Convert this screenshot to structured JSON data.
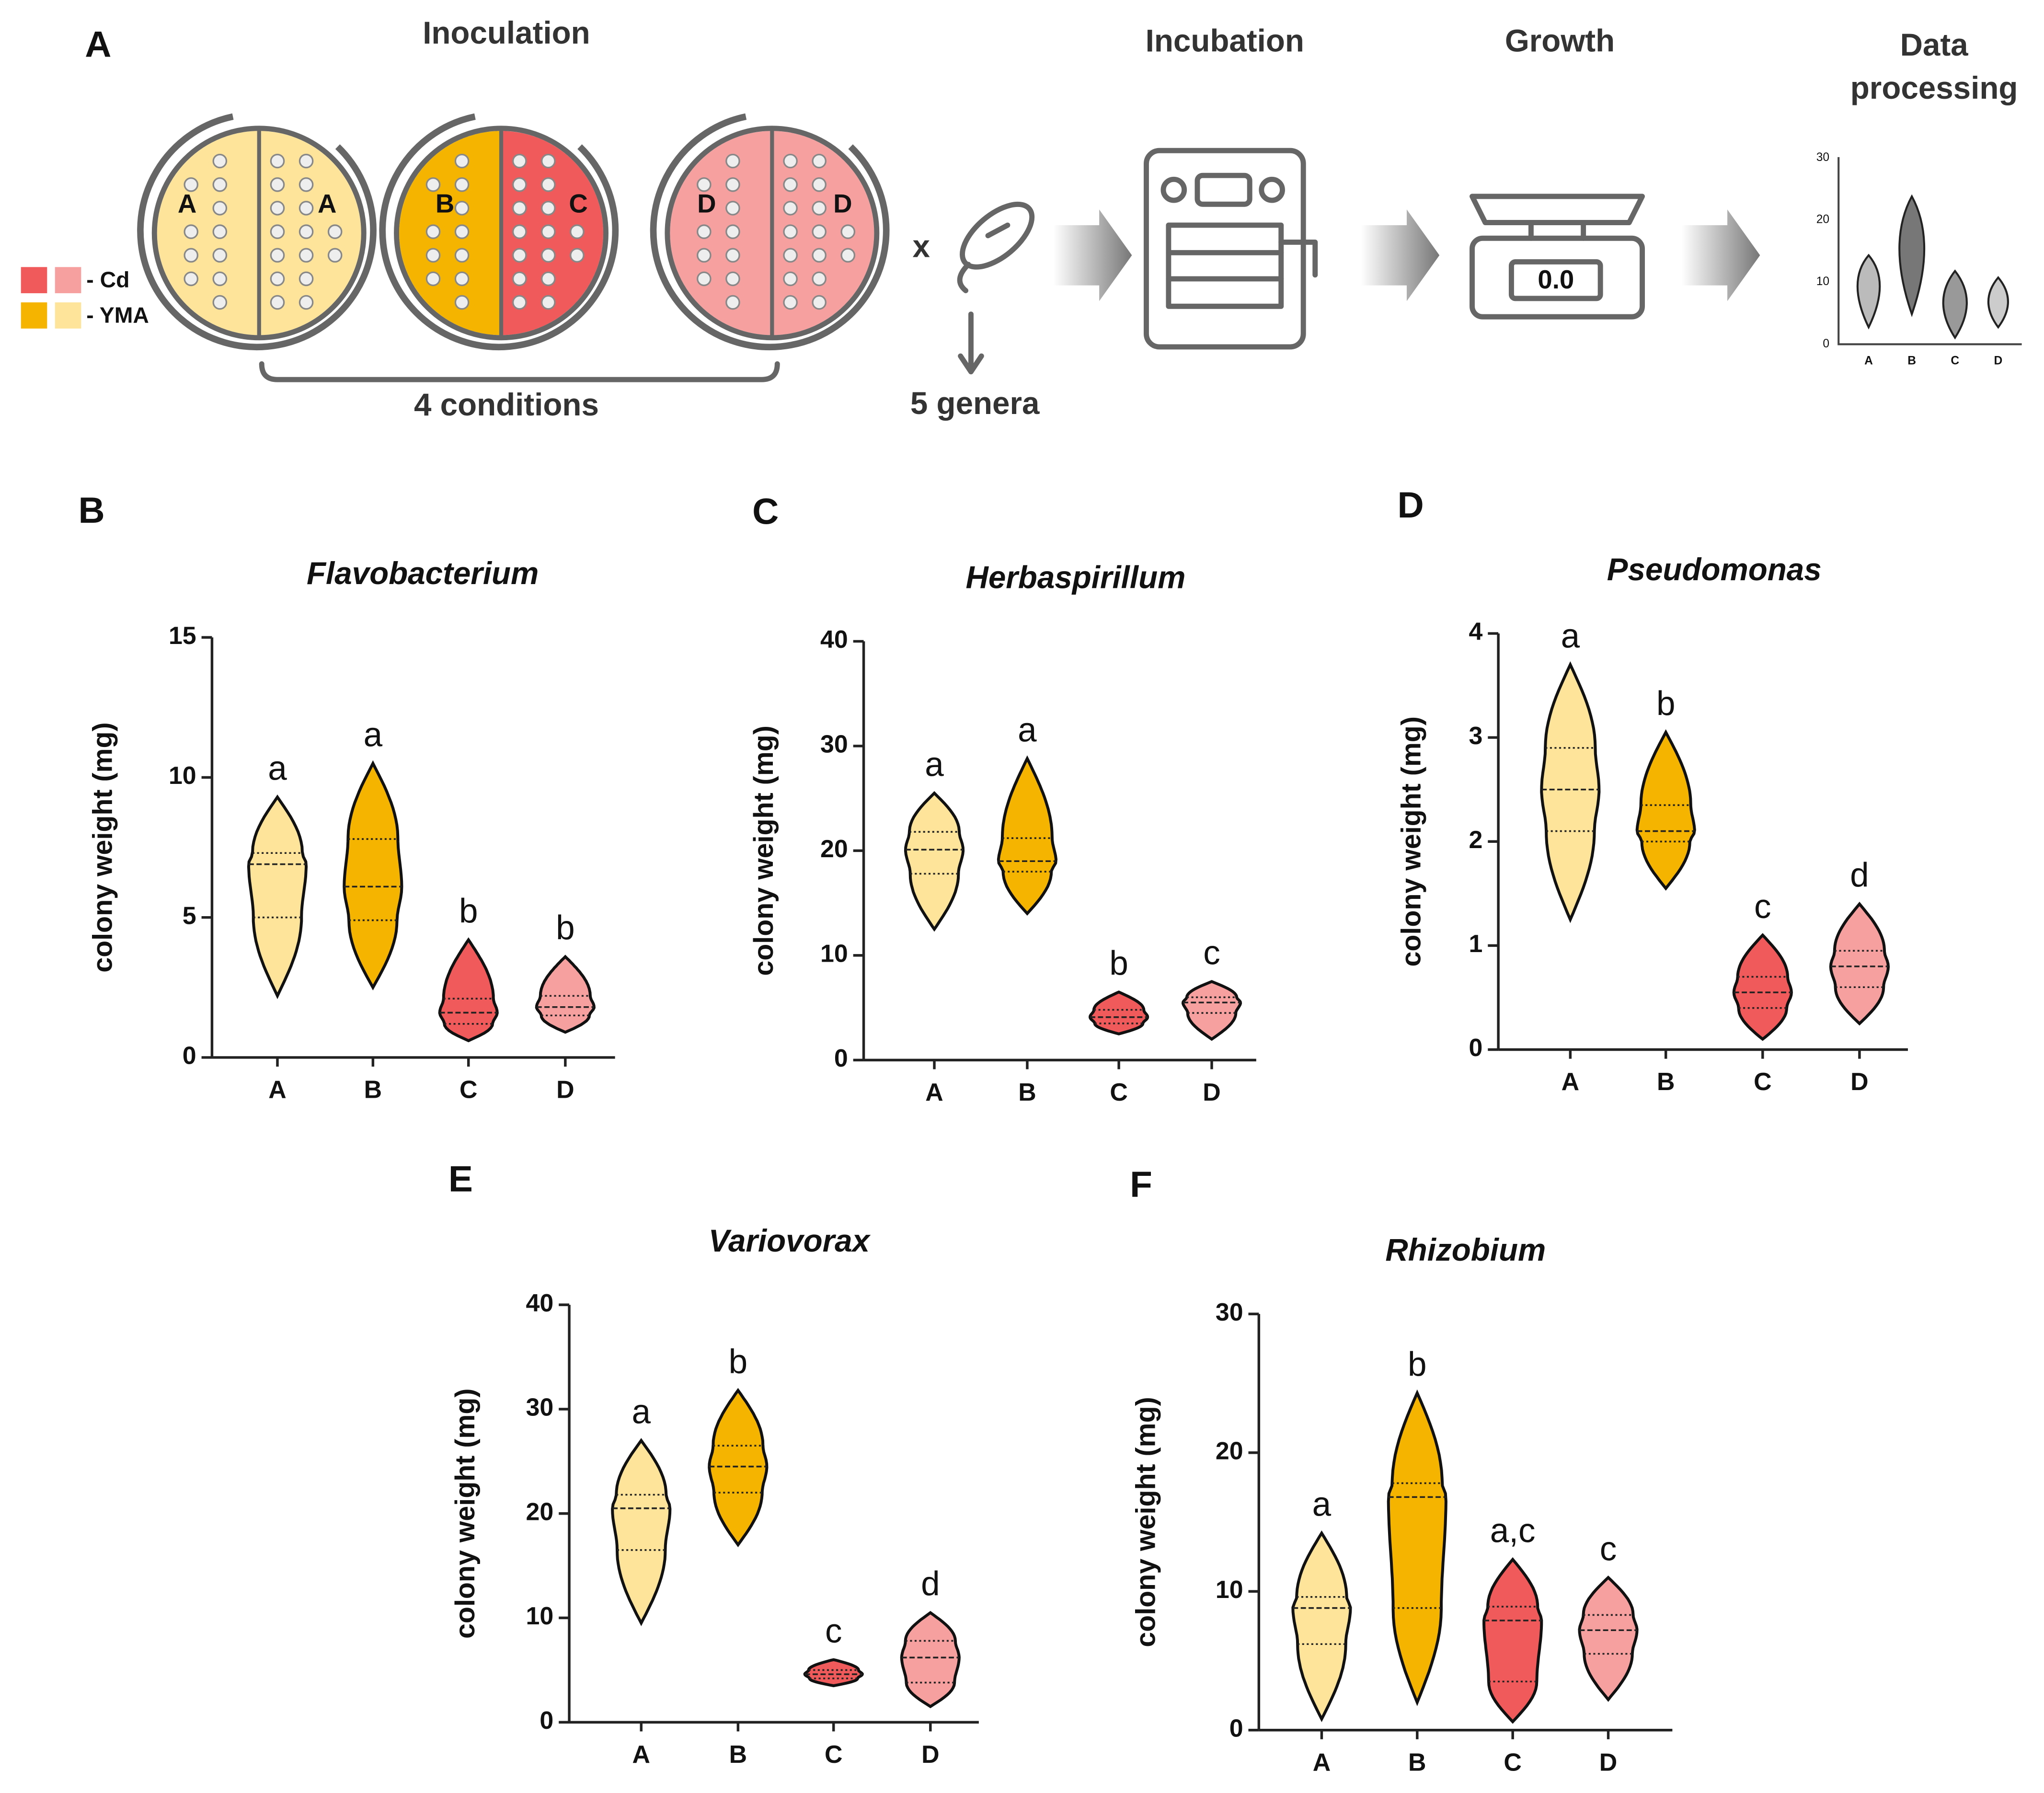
{
  "schematic": {
    "panel": "A",
    "steps": [
      "Inoculation",
      "Incubation",
      "Growth",
      "Data",
      "processing"
    ],
    "legend": [
      "- Cd",
      "- YMA"
    ],
    "plate_labels": [
      "A",
      "A",
      "B",
      "C",
      "D",
      "D"
    ],
    "conditions": "4 conditions",
    "times": "x",
    "genera": "5 genera",
    "scale_display": "0.0",
    "mini_yticks": [
      "0",
      "10",
      "20",
      "30"
    ],
    "mini_categories": [
      "A",
      "B",
      "C",
      "D"
    ]
  },
  "chart_data": [
    {
      "type": "violin",
      "panel": "B",
      "title": "Flavobacterium",
      "ylabel": "colony weight (mg)",
      "categories": [
        "A",
        "B",
        "C",
        "D"
      ],
      "colors": [
        "#fde49a",
        "#f5b400",
        "#f05a5a",
        "#f7a0a0"
      ],
      "ylim": [
        0,
        15
      ],
      "yticks": [
        0,
        5,
        10,
        15
      ],
      "stats": {
        "min": [
          2.2,
          2.5,
          0.6,
          0.9
        ],
        "q1": [
          5.0,
          4.9,
          1.2,
          1.5
        ],
        "median": [
          6.9,
          6.1,
          1.6,
          1.8
        ],
        "q3": [
          7.3,
          7.8,
          2.1,
          2.2
        ],
        "max": [
          9.3,
          10.5,
          4.2,
          3.6
        ]
      },
      "annotations": [
        "a",
        "a",
        "b",
        "b"
      ]
    },
    {
      "type": "violin",
      "panel": "C",
      "title": "Herbaspirillum",
      "ylabel": "colony weight (mg)",
      "categories": [
        "A",
        "B",
        "C",
        "D"
      ],
      "colors": [
        "#fde49a",
        "#f5b400",
        "#f05a5a",
        "#f7a0a0"
      ],
      "ylim": [
        0,
        40
      ],
      "yticks": [
        0,
        10,
        20,
        30,
        40
      ],
      "stats": {
        "min": [
          12.5,
          14,
          2.5,
          2
        ],
        "q1": [
          17.8,
          18,
          3.5,
          4.5
        ],
        "median": [
          20.1,
          19,
          4.1,
          5.5
        ],
        "q3": [
          21.8,
          21.2,
          4.8,
          6
        ],
        "max": [
          25.5,
          28.8,
          6.5,
          7.5
        ]
      },
      "annotations": [
        "a",
        "a",
        "b",
        "c"
      ]
    },
    {
      "type": "violin",
      "panel": "D",
      "title": "Pseudomonas",
      "ylabel": "colony weight (mg)",
      "categories": [
        "A",
        "B",
        "C",
        "D"
      ],
      "colors": [
        "#fde49a",
        "#f5b400",
        "#f05a5a",
        "#f7a0a0"
      ],
      "ylim": [
        0,
        4
      ],
      "yticks": [
        0,
        1,
        2,
        3,
        4
      ],
      "stats": {
        "min": [
          1.25,
          1.55,
          0.1,
          0.25
        ],
        "q1": [
          2.1,
          2.0,
          0.4,
          0.6
        ],
        "median": [
          2.5,
          2.1,
          0.55,
          0.8
        ],
        "q3": [
          2.9,
          2.35,
          0.7,
          0.95
        ],
        "max": [
          3.7,
          3.05,
          1.1,
          1.4
        ]
      },
      "annotations": [
        "a",
        "b",
        "c",
        "d"
      ]
    },
    {
      "type": "violin",
      "panel": "E",
      "title": "Variovorax",
      "ylabel": "colony weight (mg)",
      "categories": [
        "A",
        "B",
        "C",
        "D"
      ],
      "colors": [
        "#fde49a",
        "#f5b400",
        "#f05a5a",
        "#f7a0a0"
      ],
      "ylim": [
        0,
        40
      ],
      "yticks": [
        0,
        10,
        20,
        30,
        40
      ],
      "stats": {
        "min": [
          9.5,
          17,
          3.5,
          1.5
        ],
        "q1": [
          16.5,
          22,
          4.2,
          3.8
        ],
        "median": [
          20.5,
          24.5,
          4.6,
          6.2
        ],
        "q3": [
          21.8,
          26.5,
          5,
          7.8
        ],
        "max": [
          27,
          31.8,
          6,
          10.5
        ]
      },
      "annotations": [
        "a",
        "b",
        "c",
        "d"
      ]
    },
    {
      "type": "violin",
      "panel": "F",
      "title": "Rhizobium",
      "ylabel": "colony weight (mg)",
      "categories": [
        "A",
        "B",
        "C",
        "D"
      ],
      "colors": [
        "#fde49a",
        "#f5b400",
        "#f05a5a",
        "#f7a0a0"
      ],
      "ylim": [
        0,
        30
      ],
      "yticks": [
        0,
        10,
        20,
        30
      ],
      "stats": {
        "min": [
          0.8,
          2,
          0.6,
          2.2
        ],
        "q1": [
          6.2,
          8.8,
          3.5,
          5.5
        ],
        "median": [
          8.8,
          16.8,
          7.9,
          7.2
        ],
        "q3": [
          9.6,
          17.8,
          8.9,
          8.3
        ],
        "max": [
          14.2,
          24.3,
          12.3,
          11
        ]
      },
      "annotations": [
        "a",
        "b",
        "a,c",
        "c"
      ]
    }
  ]
}
